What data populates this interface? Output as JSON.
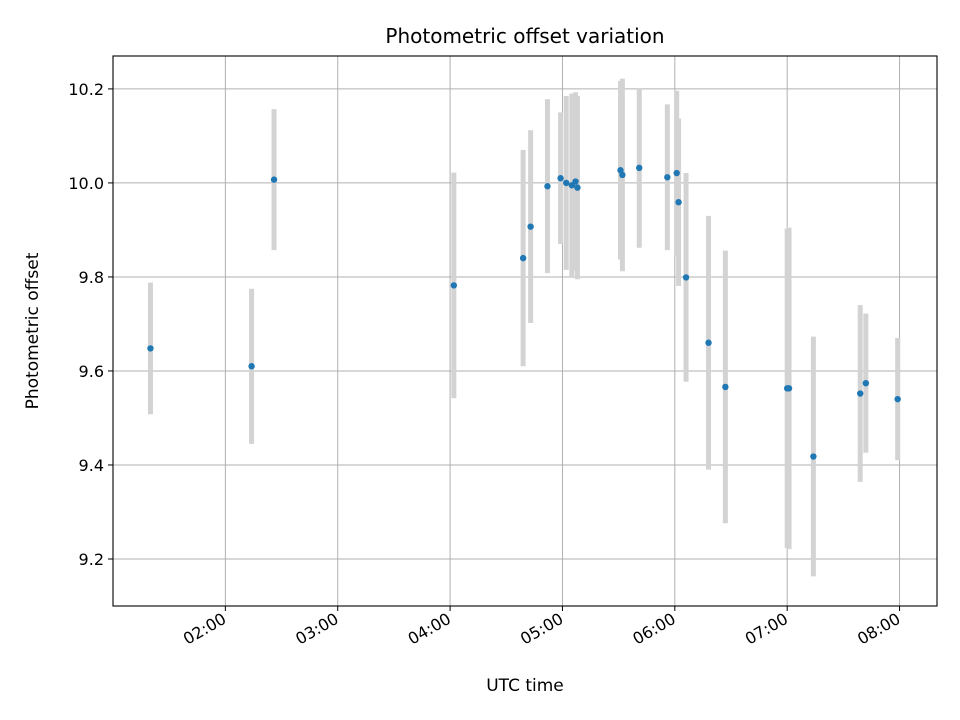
{
  "chart_data": {
    "type": "scatter",
    "title": "Photometric offset variation",
    "xlabel": "UTC time",
    "ylabel": "Photometric offset",
    "xlim": [
      "01:00",
      "08:20"
    ],
    "ylim": [
      9.1,
      10.27
    ],
    "x_ticks": [
      "02:00",
      "03:00",
      "04:00",
      "05:00",
      "06:00",
      "07:00",
      "08:00"
    ],
    "y_ticks": [
      "9.2",
      "9.4",
      "9.6",
      "9.8",
      "10.0",
      "10.2"
    ],
    "grid": true,
    "point_color": "#1f77b4",
    "errorbar_color": "#d3d3d3",
    "points": [
      {
        "t": "01:20",
        "y": 9.648,
        "err": 0.14
      },
      {
        "t": "02:14",
        "y": 9.61,
        "err": 0.165
      },
      {
        "t": "02:26",
        "y": 10.007,
        "err": 0.15
      },
      {
        "t": "04:02",
        "y": 9.782,
        "err": 0.24
      },
      {
        "t": "04:39",
        "y": 9.84,
        "err": 0.23
      },
      {
        "t": "04:43",
        "y": 9.907,
        "err": 0.205
      },
      {
        "t": "04:52",
        "y": 9.993,
        "err": 0.185
      },
      {
        "t": "04:59",
        "y": 10.01,
        "err": 0.14
      },
      {
        "t": "05:02",
        "y": 10.0,
        "err": 0.185
      },
      {
        "t": "05:05",
        "y": 9.995,
        "err": 0.195
      },
      {
        "t": "05:07",
        "y": 10.003,
        "err": 0.19
      },
      {
        "t": "05:08",
        "y": 9.99,
        "err": 0.195
      },
      {
        "t": "05:31",
        "y": 10.027,
        "err": 0.19
      },
      {
        "t": "05:32",
        "y": 10.017,
        "err": 0.205
      },
      {
        "t": "05:41",
        "y": 10.032,
        "err": 0.17
      },
      {
        "t": "05:56",
        "y": 10.012,
        "err": 0.155
      },
      {
        "t": "06:01",
        "y": 10.021,
        "err": 0.175
      },
      {
        "t": "06:02",
        "y": 9.959,
        "err": 0.178
      },
      {
        "t": "06:06",
        "y": 9.799,
        "err": 0.222
      },
      {
        "t": "06:18",
        "y": 9.66,
        "err": 0.27
      },
      {
        "t": "06:27",
        "y": 9.566,
        "err": 0.29
      },
      {
        "t": "07:00",
        "y": 9.563,
        "err": 0.34
      },
      {
        "t": "07:01",
        "y": 9.563,
        "err": 0.342
      },
      {
        "t": "07:14",
        "y": 9.418,
        "err": 0.255
      },
      {
        "t": "07:39",
        "y": 9.552,
        "err": 0.188
      },
      {
        "t": "07:42",
        "y": 9.574,
        "err": 0.148
      },
      {
        "t": "07:59",
        "y": 9.54,
        "err": 0.13
      }
    ]
  }
}
